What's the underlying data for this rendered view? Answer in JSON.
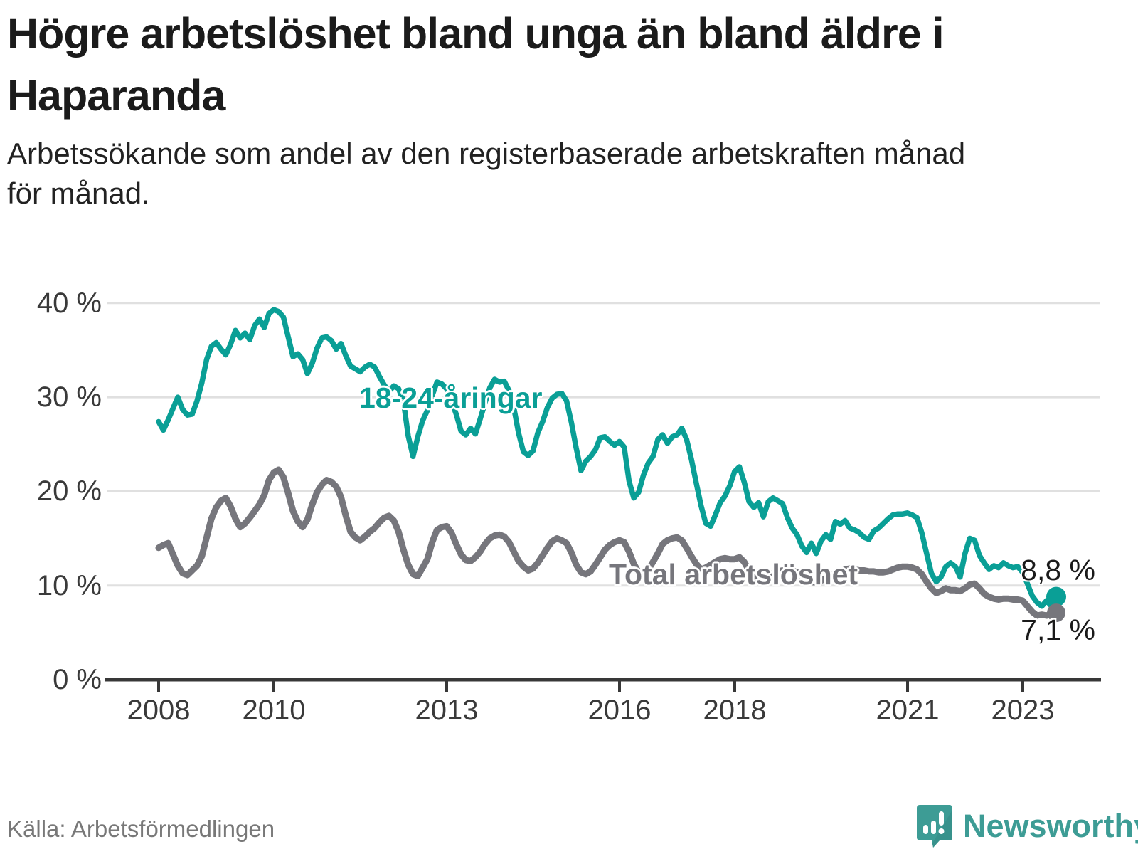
{
  "header": {
    "title": "Högre arbetslöshet bland unga än bland äldre i\nHaparanda",
    "subtitle": "Arbetssökande som andel av den registerbaserade arbetskraften månad\nför månad."
  },
  "footer": {
    "source": "Källa: Arbetsförmedlingen",
    "logo_text": "Newsworthy"
  },
  "colors": {
    "young_line": "#0a9f96",
    "total_line": "#76767c",
    "axis": "#383838",
    "gridline": "#e0e0e0",
    "tick_text": "#3a3a3a",
    "title_text": "#1b1b1b",
    "source_text": "#787878",
    "logo_teal": "#3d9c95"
  },
  "chart_data": {
    "type": "line",
    "title": "Högre arbetslöshet bland unga än bland äldre i Haparanda",
    "xlabel": "",
    "ylabel": "",
    "x_unit": "month",
    "x_start": "2008-01",
    "x_end": "2023-08",
    "ylim": [
      0,
      42
    ],
    "grid": "horizontal",
    "y_ticks": [
      "40 %",
      "30 %",
      "20 %",
      "10 %",
      "0 %"
    ],
    "y_tick_values": [
      40,
      30,
      20,
      10,
      0
    ],
    "x_tick_years": [
      2008,
      2010,
      2013,
      2016,
      2018,
      2021,
      2023
    ],
    "series": [
      {
        "name": "18-24-åringar",
        "color": "#0a9f96",
        "end_label": "8,8 %",
        "end_value": 8.8,
        "values": [
          27.4,
          26.5,
          27.6,
          28.8,
          30.0,
          28.7,
          28.1,
          28.2,
          29.6,
          31.5,
          34.0,
          35.4,
          35.8,
          35.1,
          34.5,
          35.6,
          37.1,
          36.3,
          36.8,
          36.1,
          37.6,
          38.3,
          37.4,
          38.9,
          39.3,
          39.1,
          38.5,
          36.4,
          34.3,
          34.6,
          34.0,
          32.5,
          33.6,
          35.2,
          36.3,
          36.4,
          36.0,
          35.1,
          35.7,
          34.4,
          33.3,
          33.0,
          32.7,
          33.2,
          33.5,
          33.2,
          32.2,
          31.3,
          30.6,
          31.2,
          30.9,
          29.6,
          25.9,
          23.7,
          25.8,
          27.5,
          28.6,
          30.2,
          31.6,
          31.4,
          30.9,
          29.6,
          28.2,
          26.4,
          26.0,
          26.7,
          26.1,
          27.7,
          29.4,
          31.0,
          31.9,
          31.6,
          31.7,
          30.7,
          28.9,
          26.2,
          24.2,
          23.8,
          24.3,
          26.2,
          27.4,
          28.9,
          29.9,
          30.3,
          30.4,
          29.6,
          27.3,
          24.6,
          22.2,
          23.2,
          23.7,
          24.4,
          25.7,
          25.8,
          25.3,
          24.9,
          25.3,
          24.7,
          21.1,
          19.3,
          19.9,
          21.7,
          23.0,
          23.7,
          25.5,
          26.0,
          25.1,
          25.8,
          26.0,
          26.7,
          25.5,
          23.4,
          20.9,
          18.5,
          16.6,
          16.3,
          17.5,
          18.8,
          19.5,
          20.6,
          22.1,
          22.6,
          21.0,
          18.9,
          18.3,
          18.8,
          17.3,
          18.9,
          19.3,
          19.0,
          18.7,
          17.2,
          16.1,
          15.4,
          14.2,
          13.5,
          14.5,
          13.4,
          14.7,
          15.4,
          14.9,
          16.8,
          16.5,
          16.9,
          16.1,
          15.9,
          15.6,
          15.1,
          14.9,
          15.8,
          16.1,
          16.6,
          17.1,
          17.5,
          17.6,
          17.6,
          17.7,
          17.5,
          17.2,
          15.6,
          13.4,
          11.3,
          10.4,
          10.9,
          12.0,
          12.4,
          12.0,
          10.9,
          13.4,
          15.0,
          14.8,
          13.2,
          12.4,
          11.7,
          12.1,
          11.9,
          12.4,
          12.1,
          11.9,
          12.0,
          11.4,
          10.2,
          8.9,
          8.2,
          7.8,
          8.4,
          7.8,
          8.8
        ]
      },
      {
        "name": "Total arbetslöshet",
        "color": "#76767c",
        "end_label": "7,1 %",
        "end_value": 7.1,
        "values": [
          14.0,
          14.3,
          14.5,
          13.3,
          12.1,
          11.3,
          11.1,
          11.6,
          12.1,
          13.1,
          15.1,
          17.1,
          18.3,
          19.0,
          19.3,
          18.4,
          17.1,
          16.2,
          16.6,
          17.2,
          17.9,
          18.6,
          19.6,
          21.2,
          22.0,
          22.3,
          21.5,
          19.8,
          17.9,
          16.8,
          16.2,
          17.0,
          18.6,
          19.9,
          20.7,
          21.2,
          21.0,
          20.5,
          19.4,
          17.4,
          15.7,
          15.1,
          14.8,
          15.2,
          15.7,
          16.1,
          16.7,
          17.2,
          17.4,
          16.9,
          15.7,
          13.8,
          12.2,
          11.2,
          11.0,
          11.9,
          12.8,
          14.6,
          15.9,
          16.2,
          16.3,
          15.6,
          14.4,
          13.3,
          12.7,
          12.6,
          13.0,
          13.6,
          14.4,
          15.0,
          15.3,
          15.4,
          15.2,
          14.6,
          13.6,
          12.6,
          12.0,
          11.6,
          11.8,
          12.4,
          13.2,
          14.0,
          14.7,
          15.0,
          14.8,
          14.5,
          13.5,
          12.2,
          11.4,
          11.2,
          11.5,
          12.2,
          13.0,
          13.8,
          14.3,
          14.6,
          14.8,
          14.6,
          13.6,
          12.3,
          11.4,
          11.3,
          11.7,
          12.5,
          13.4,
          14.4,
          14.8,
          15.0,
          15.1,
          14.8,
          14.0,
          13.1,
          12.3,
          11.7,
          11.9,
          12.2,
          12.5,
          12.8,
          12.9,
          12.8,
          12.8,
          13.0,
          12.5,
          11.6,
          11.0,
          10.8,
          10.7,
          11.0,
          11.3,
          11.5,
          11.6,
          11.7,
          11.6,
          11.4,
          11.0,
          10.6,
          10.4,
          10.3,
          10.5,
          10.8,
          11.0,
          11.3,
          11.5,
          11.7,
          11.8,
          11.7,
          11.6,
          11.6,
          11.5,
          11.5,
          11.4,
          11.4,
          11.5,
          11.7,
          11.9,
          12.0,
          12.0,
          11.9,
          11.7,
          11.2,
          10.4,
          9.7,
          9.2,
          9.4,
          9.7,
          9.5,
          9.5,
          9.4,
          9.7,
          10.1,
          10.2,
          9.7,
          9.1,
          8.8,
          8.6,
          8.5,
          8.6,
          8.6,
          8.5,
          8.5,
          8.4,
          7.8,
          7.2,
          6.8,
          6.9,
          6.8,
          7.0,
          7.1
        ]
      }
    ],
    "legend_position": "inline-labels"
  }
}
